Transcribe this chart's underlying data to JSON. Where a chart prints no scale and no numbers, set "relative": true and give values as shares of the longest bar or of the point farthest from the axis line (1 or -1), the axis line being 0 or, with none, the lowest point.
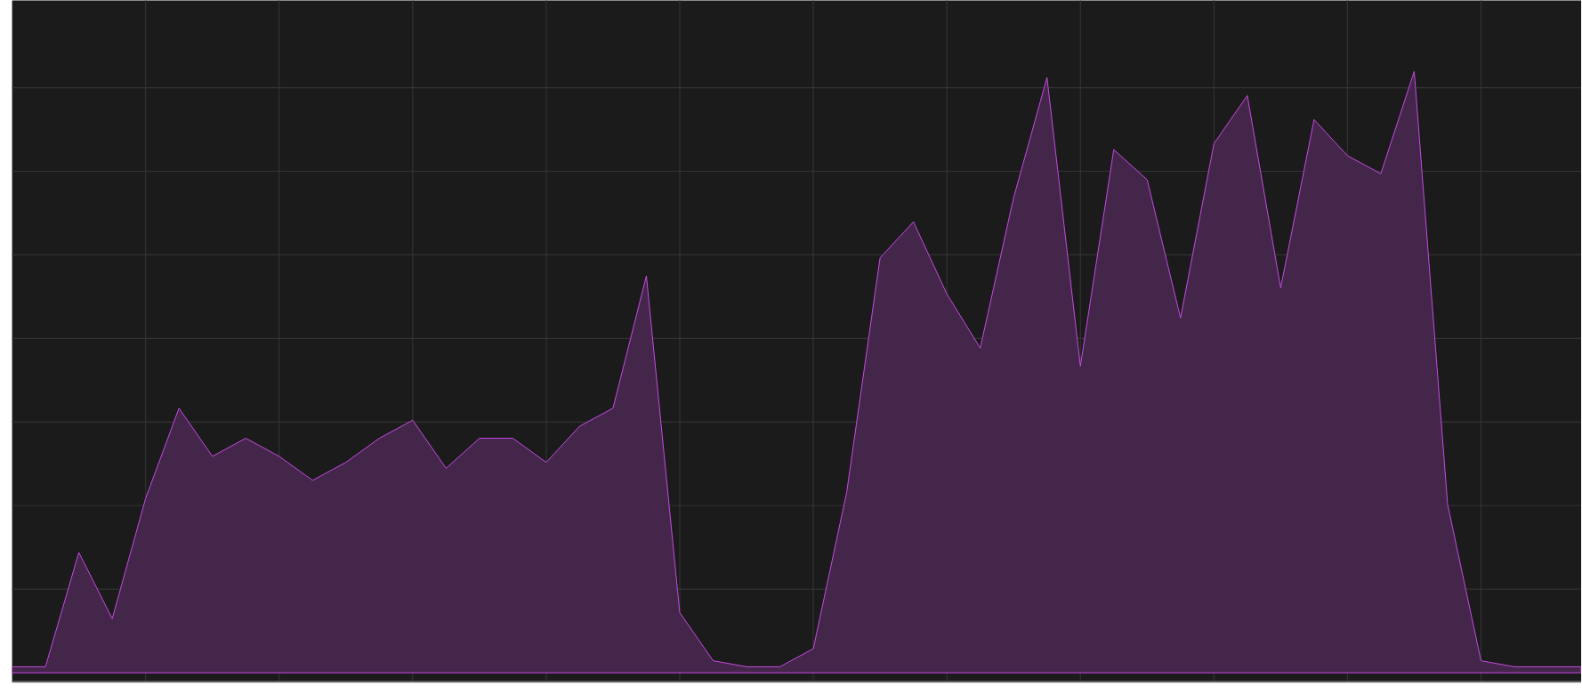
{
  "chart_data": {
    "type": "area",
    "relative": true,
    "grid": true,
    "color": "#c94be6",
    "categories": [
      null,
      null,
      null,
      null,
      null,
      null,
      null,
      null,
      null,
      null,
      null,
      null,
      null,
      null,
      null,
      null,
      null,
      null,
      null,
      null,
      null,
      null,
      null,
      null,
      null,
      null,
      null,
      null,
      null,
      null,
      null,
      null,
      null,
      null,
      null,
      null,
      null,
      null,
      null,
      null,
      null,
      null,
      null,
      null,
      null,
      null,
      null,
      null
    ],
    "values": [
      0.01,
      0.01,
      0.2,
      0.09,
      0.29,
      0.44,
      0.36,
      0.39,
      0.36,
      0.32,
      0.35,
      0.39,
      0.42,
      0.34,
      0.39,
      0.39,
      0.35,
      0.41,
      0.44,
      0.66,
      0.1,
      0.02,
      0.01,
      0.01,
      0.04,
      0.3,
      0.69,
      0.75,
      0.63,
      0.54,
      0.79,
      0.99,
      0.51,
      0.87,
      0.82,
      0.59,
      0.88,
      0.96,
      0.64,
      0.92,
      0.86,
      0.83,
      1,
      0.28,
      0.02,
      0.01,
      0.01,
      0.01
    ]
  }
}
